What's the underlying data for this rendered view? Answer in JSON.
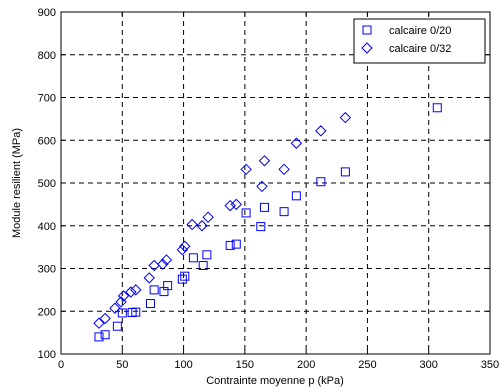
{
  "chart_data": {
    "type": "scatter",
    "xlabel": "Contrainte moyenne p (kPa)",
    "ylabel": "Module resilient (MPa)",
    "xlim": [
      0,
      350
    ],
    "ylim": [
      100,
      900
    ],
    "xticks": [
      0,
      50,
      100,
      150,
      200,
      250,
      300,
      350
    ],
    "yticks": [
      100,
      200,
      300,
      400,
      500,
      600,
      700,
      800,
      900
    ],
    "xtick_labels": [
      "0",
      "50",
      "100",
      "150",
      "200",
      "250",
      "300",
      "350"
    ],
    "ytick_labels": [
      "100",
      "200",
      "300",
      "400",
      "500",
      "600",
      "700",
      "800",
      "900"
    ],
    "grid": true,
    "grid_style": "dashed",
    "legend_position": "top-right",
    "series": [
      {
        "name": "calcaire 0/20",
        "marker": "square",
        "color": "#0000ff",
        "points": [
          [
            31,
            140
          ],
          [
            36,
            145
          ],
          [
            46,
            165
          ],
          [
            50,
            196
          ],
          [
            58,
            197
          ],
          [
            61,
            198
          ],
          [
            73,
            218
          ],
          [
            76,
            250
          ],
          [
            84,
            246
          ],
          [
            87,
            260
          ],
          [
            99,
            275
          ],
          [
            101,
            282
          ],
          [
            108,
            325
          ],
          [
            116,
            307
          ],
          [
            119,
            332
          ],
          [
            138,
            354
          ],
          [
            143,
            357
          ],
          [
            151,
            430
          ],
          [
            163,
            398
          ],
          [
            166,
            443
          ],
          [
            182,
            433
          ],
          [
            192,
            470
          ],
          [
            212,
            503
          ],
          [
            232,
            526
          ],
          [
            307,
            676
          ]
        ]
      },
      {
        "name": "calcaire 0/32",
        "marker": "diamond",
        "color": "#0000ff",
        "points": [
          [
            31,
            172
          ],
          [
            36,
            183
          ],
          [
            44,
            207
          ],
          [
            49,
            222
          ],
          [
            51,
            236
          ],
          [
            57,
            245
          ],
          [
            61,
            250
          ],
          [
            72,
            278
          ],
          [
            76,
            307
          ],
          [
            83,
            310
          ],
          [
            86,
            320
          ],
          [
            99,
            344
          ],
          [
            101,
            352
          ],
          [
            107,
            403
          ],
          [
            115,
            400
          ],
          [
            120,
            420
          ],
          [
            138,
            447
          ],
          [
            143,
            450
          ],
          [
            151,
            532
          ],
          [
            164,
            492
          ],
          [
            166,
            552
          ],
          [
            182,
            532
          ],
          [
            192,
            593
          ],
          [
            212,
            622
          ],
          [
            232,
            653
          ]
        ]
      }
    ]
  }
}
